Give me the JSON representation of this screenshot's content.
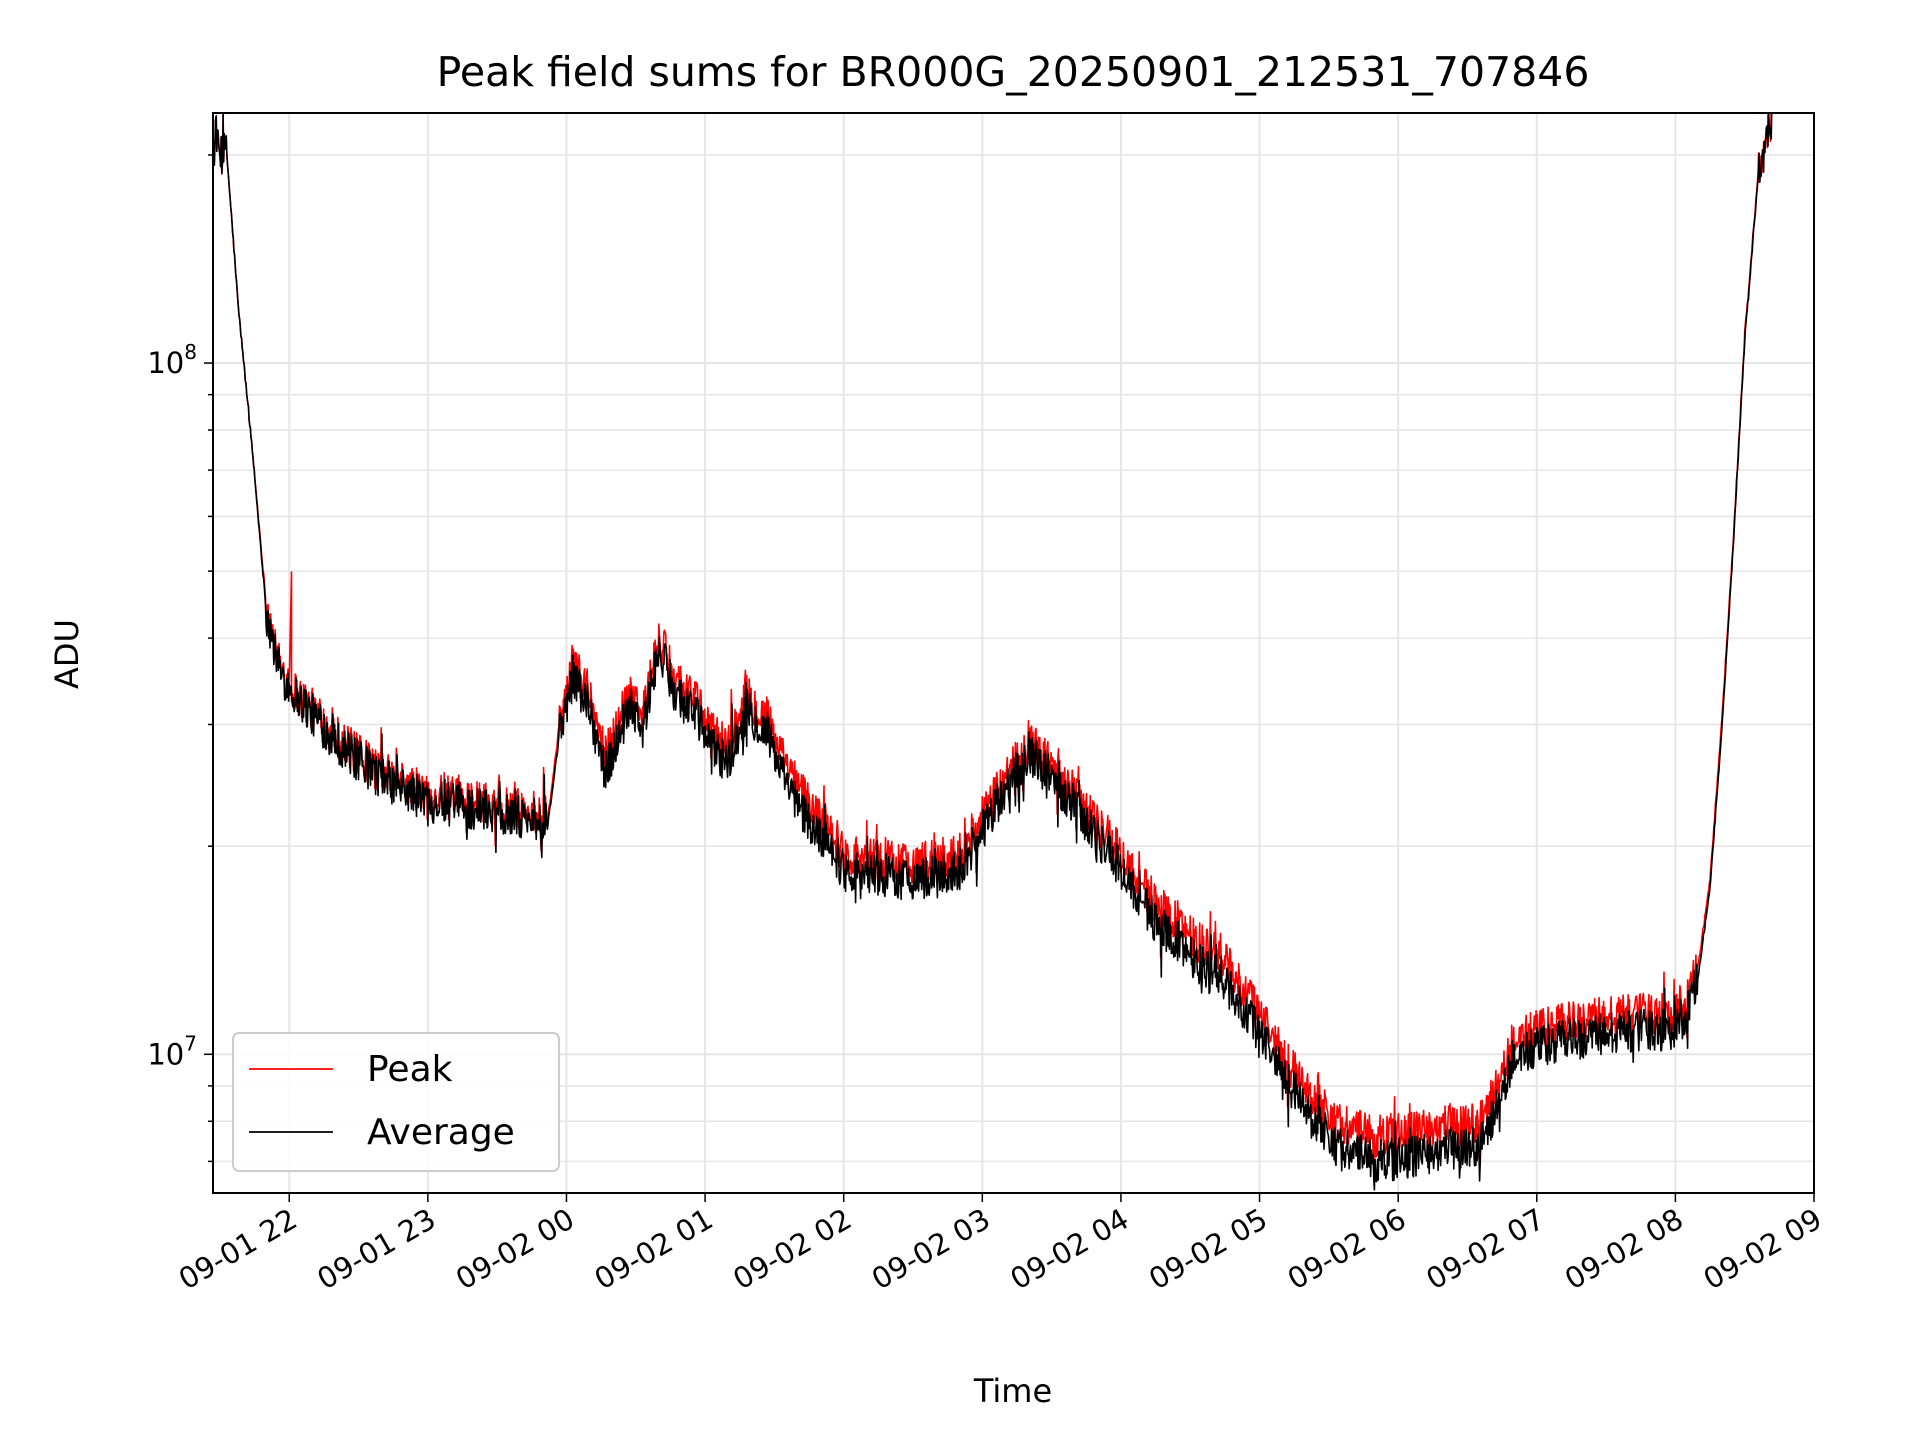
{
  "chart_data": {
    "type": "line",
    "title": "Peak field sums for BR000G_20250901_212531_707846",
    "xlabel": "Time",
    "ylabel": "ADU",
    "xscale": "time",
    "yscale": "log",
    "xlim": [
      "2025-09-01 21:27",
      "2025-09-02 09:00"
    ],
    "ylim": [
      6300000,
      230000000
    ],
    "grid": true,
    "legend": {
      "location": "lower-left",
      "entries": [
        "Peak",
        "Average"
      ]
    },
    "x_ticks": [
      {
        "label": "09-01 22",
        "time": "2025-09-01 22:00"
      },
      {
        "label": "09-01 23",
        "time": "2025-09-01 23:00"
      },
      {
        "label": "09-02 00",
        "time": "2025-09-02 00:00"
      },
      {
        "label": "09-02 01",
        "time": "2025-09-02 01:00"
      },
      {
        "label": "09-02 02",
        "time": "2025-09-02 02:00"
      },
      {
        "label": "09-02 03",
        "time": "2025-09-02 03:00"
      },
      {
        "label": "09-02 04",
        "time": "2025-09-02 04:00"
      },
      {
        "label": "09-02 05",
        "time": "2025-09-02 05:00"
      },
      {
        "label": "09-02 06",
        "time": "2025-09-02 06:00"
      },
      {
        "label": "09-02 07",
        "time": "2025-09-02 07:00"
      },
      {
        "label": "09-02 08",
        "time": "2025-09-02 08:00"
      },
      {
        "label": "09-02 09",
        "time": "2025-09-02 09:00"
      }
    ],
    "y_ticks": [
      {
        "base": "10",
        "exp": "7",
        "value": 10000000
      },
      {
        "base": "10",
        "exp": "8",
        "value": 100000000
      }
    ],
    "series": [
      {
        "name": "Peak",
        "color": "#ff0000",
        "noise": 0.07,
        "points": [
          [
            "2025-09-01 21:27",
            205000000
          ],
          [
            "2025-09-01 21:33",
            200000000
          ],
          [
            "2025-09-01 21:38",
            120000000
          ],
          [
            "2025-09-01 21:44",
            75000000
          ],
          [
            "2025-09-01 21:50",
            45000000
          ],
          [
            "2025-09-01 21:55",
            37000000
          ],
          [
            "2025-09-01 22:00",
            34500000
          ],
          [
            "2025-09-01 22:01",
            50000000
          ],
          [
            "2025-09-01 22:01",
            34000000
          ],
          [
            "2025-09-01 22:10",
            31500000
          ],
          [
            "2025-09-01 22:20",
            29000000
          ],
          [
            "2025-09-01 22:30",
            27000000
          ],
          [
            "2025-09-01 22:45",
            25000000
          ],
          [
            "2025-09-01 23:00",
            23800000
          ],
          [
            "2025-09-01 23:15",
            23300000
          ],
          [
            "2025-09-01 23:30",
            23000000
          ],
          [
            "2025-09-01 23:45",
            22400000
          ],
          [
            "2025-09-01 23:52",
            22000000
          ],
          [
            "2025-09-01 23:57",
            30000000
          ],
          [
            "2025-09-02 00:03",
            37000000
          ],
          [
            "2025-09-02 00:10",
            33000000
          ],
          [
            "2025-09-02 00:17",
            27000000
          ],
          [
            "2025-09-02 00:22",
            30000000
          ],
          [
            "2025-09-02 00:28",
            34000000
          ],
          [
            "2025-09-02 00:33",
            31000000
          ],
          [
            "2025-09-02 00:40",
            40000000
          ],
          [
            "2025-09-02 00:47",
            35000000
          ],
          [
            "2025-09-02 00:55",
            33000000
          ],
          [
            "2025-09-02 01:02",
            29500000
          ],
          [
            "2025-09-02 01:10",
            28000000
          ],
          [
            "2025-09-02 01:18",
            33000000
          ],
          [
            "2025-09-02 01:27",
            30500000
          ],
          [
            "2025-09-02 01:35",
            26000000
          ],
          [
            "2025-09-02 01:45",
            23000000
          ],
          [
            "2025-09-02 01:55",
            21000000
          ],
          [
            "2025-09-02 02:00",
            19500000
          ],
          [
            "2025-09-02 02:20",
            19000000
          ],
          [
            "2025-09-02 02:40",
            19000000
          ],
          [
            "2025-09-02 02:50",
            19500000
          ],
          [
            "2025-09-02 03:00",
            22000000
          ],
          [
            "2025-09-02 03:10",
            25000000
          ],
          [
            "2025-09-02 03:20",
            28500000
          ],
          [
            "2025-09-02 03:30",
            26000000
          ],
          [
            "2025-09-02 03:40",
            24000000
          ],
          [
            "2025-09-02 03:50",
            21500000
          ],
          [
            "2025-09-02 04:00",
            19500000
          ],
          [
            "2025-09-02 04:15",
            16500000
          ],
          [
            "2025-09-02 04:30",
            15000000
          ],
          [
            "2025-09-02 04:45",
            13500000
          ],
          [
            "2025-09-02 05:00",
            11500000
          ],
          [
            "2025-09-02 05:10",
            10000000
          ],
          [
            "2025-09-02 05:20",
            8900000
          ],
          [
            "2025-09-02 05:35",
            7900000
          ],
          [
            "2025-09-02 05:50",
            7600000
          ],
          [
            "2025-09-02 06:05",
            7700000
          ],
          [
            "2025-09-02 06:20",
            7900000
          ],
          [
            "2025-09-02 06:35",
            8000000
          ],
          [
            "2025-09-02 06:45",
            9200000
          ],
          [
            "2025-09-02 06:50",
            10500000
          ],
          [
            "2025-09-02 07:00",
            10800000
          ],
          [
            "2025-09-02 07:15",
            11100000
          ],
          [
            "2025-09-02 07:30",
            11300000
          ],
          [
            "2025-09-02 07:45",
            11400000
          ],
          [
            "2025-09-02 08:00",
            11500000
          ],
          [
            "2025-09-02 08:05",
            12000000
          ],
          [
            "2025-09-02 08:10",
            13500000
          ],
          [
            "2025-09-02 08:15",
            18000000
          ],
          [
            "2025-09-02 08:20",
            30000000
          ],
          [
            "2025-09-02 08:25",
            55000000
          ],
          [
            "2025-09-02 08:30",
            110000000
          ],
          [
            "2025-09-02 08:36",
            190000000
          ],
          [
            "2025-09-02 08:42",
            230000000
          ]
        ]
      },
      {
        "name": "Average",
        "color": "#000000",
        "noise": 0.07,
        "points": [
          [
            "2025-09-01 21:27",
            205000000
          ],
          [
            "2025-09-01 21:33",
            200000000
          ],
          [
            "2025-09-01 21:38",
            120000000
          ],
          [
            "2025-09-01 21:44",
            75000000
          ],
          [
            "2025-09-01 21:50",
            44000000
          ],
          [
            "2025-09-01 21:55",
            36500000
          ],
          [
            "2025-09-01 22:00",
            34000000
          ],
          [
            "2025-09-01 22:10",
            31000000
          ],
          [
            "2025-09-01 22:20",
            28500000
          ],
          [
            "2025-09-01 22:30",
            26500000
          ],
          [
            "2025-09-01 22:45",
            24500000
          ],
          [
            "2025-09-01 23:00",
            23300000
          ],
          [
            "2025-09-01 23:15",
            22800000
          ],
          [
            "2025-09-01 23:30",
            22500000
          ],
          [
            "2025-09-01 23:45",
            21900000
          ],
          [
            "2025-09-01 23:52",
            21500000
          ],
          [
            "2025-09-01 23:57",
            29000000
          ],
          [
            "2025-09-02 00:03",
            35500000
          ],
          [
            "2025-09-02 00:10",
            31500000
          ],
          [
            "2025-09-02 00:17",
            25500000
          ],
          [
            "2025-09-02 00:22",
            28500000
          ],
          [
            "2025-09-02 00:28",
            32500000
          ],
          [
            "2025-09-02 00:33",
            29500000
          ],
          [
            "2025-09-02 00:40",
            38500000
          ],
          [
            "2025-09-02 00:47",
            33500000
          ],
          [
            "2025-09-02 00:55",
            31500000
          ],
          [
            "2025-09-02 01:02",
            28000000
          ],
          [
            "2025-09-02 01:10",
            26500000
          ],
          [
            "2025-09-02 01:18",
            31500000
          ],
          [
            "2025-09-02 01:27",
            29000000
          ],
          [
            "2025-09-02 01:35",
            24500000
          ],
          [
            "2025-09-02 01:45",
            21500000
          ],
          [
            "2025-09-02 01:55",
            19800000
          ],
          [
            "2025-09-02 02:00",
            18500000
          ],
          [
            "2025-09-02 02:20",
            18000000
          ],
          [
            "2025-09-02 02:40",
            18000000
          ],
          [
            "2025-09-02 02:50",
            18500000
          ],
          [
            "2025-09-02 03:00",
            21000000
          ],
          [
            "2025-09-02 03:10",
            24000000
          ],
          [
            "2025-09-02 03:20",
            27500000
          ],
          [
            "2025-09-02 03:30",
            25000000
          ],
          [
            "2025-09-02 03:40",
            23000000
          ],
          [
            "2025-09-02 03:50",
            20500000
          ],
          [
            "2025-09-02 04:00",
            18500000
          ],
          [
            "2025-09-02 04:15",
            15500000
          ],
          [
            "2025-09-02 04:30",
            14000000
          ],
          [
            "2025-09-02 04:45",
            12500000
          ],
          [
            "2025-09-02 05:00",
            10800000
          ],
          [
            "2025-09-02 05:10",
            9400000
          ],
          [
            "2025-09-02 05:20",
            8300000
          ],
          [
            "2025-09-02 05:35",
            7300000
          ],
          [
            "2025-09-02 05:50",
            7000000
          ],
          [
            "2025-09-02 06:05",
            7100000
          ],
          [
            "2025-09-02 06:20",
            7300000
          ],
          [
            "2025-09-02 06:35",
            7400000
          ],
          [
            "2025-09-02 06:45",
            8600000
          ],
          [
            "2025-09-02 06:50",
            9900000
          ],
          [
            "2025-09-02 07:00",
            10200000
          ],
          [
            "2025-09-02 07:15",
            10500000
          ],
          [
            "2025-09-02 07:30",
            10700000
          ],
          [
            "2025-09-02 07:45",
            10800000
          ],
          [
            "2025-09-02 08:00",
            10900000
          ],
          [
            "2025-09-02 08:05",
            11500000
          ],
          [
            "2025-09-02 08:10",
            13000000
          ],
          [
            "2025-09-02 08:15",
            17500000
          ],
          [
            "2025-09-02 08:20",
            29000000
          ],
          [
            "2025-09-02 08:25",
            54000000
          ],
          [
            "2025-09-02 08:30",
            108000000
          ],
          [
            "2025-09-02 08:36",
            188000000
          ],
          [
            "2025-09-02 08:42",
            230000000
          ]
        ]
      }
    ]
  }
}
